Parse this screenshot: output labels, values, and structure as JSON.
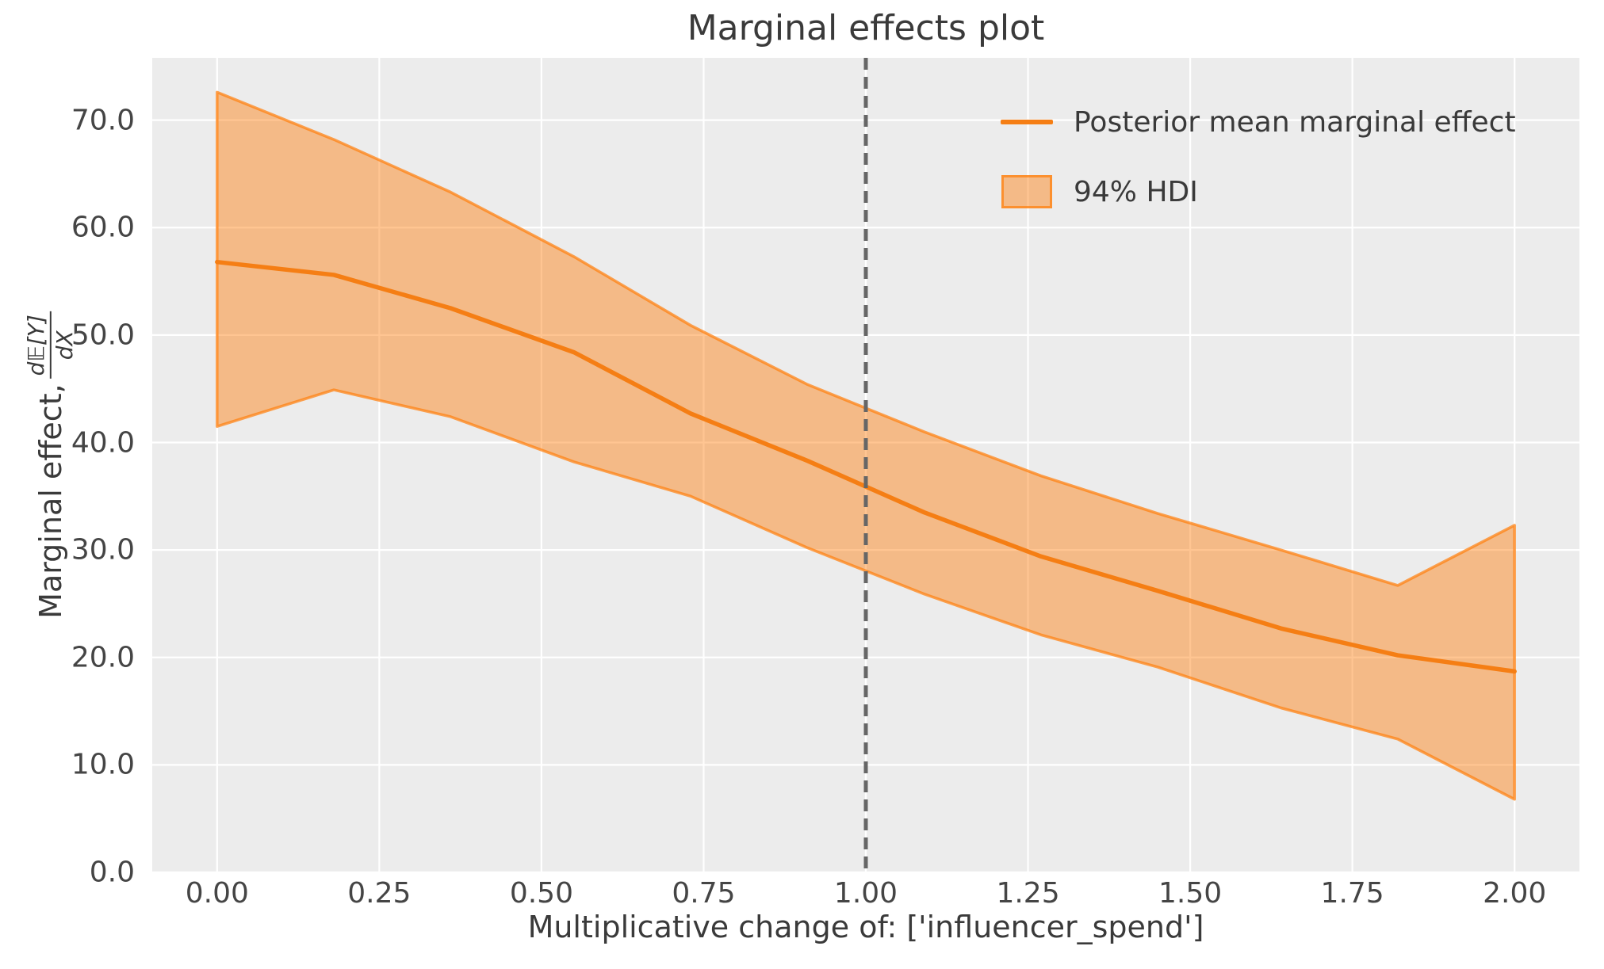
{
  "title": "Marginal effects plot",
  "legend": {
    "line_label": "Posterior mean marginal effect",
    "band_label": "94% HDI"
  },
  "x_axis": {
    "label": "Multiplicative change of: ['influencer_spend']",
    "tick_labels": [
      "0.00",
      "0.25",
      "0.50",
      "0.75",
      "1.00",
      "1.25",
      "1.50",
      "1.75",
      "2.00"
    ],
    "tick_values": [
      0,
      0.25,
      0.5,
      0.75,
      1.0,
      1.25,
      1.5,
      1.75,
      2.0
    ]
  },
  "y_axis": {
    "label_prefix": "Marginal effect, ",
    "fraction_numerator": "d𝔼[Y]",
    "fraction_denominator": "dX",
    "tick_labels": [
      "0.0",
      "10.0",
      "20.0",
      "30.0",
      "40.0",
      "50.0",
      "60.0",
      "70.0"
    ],
    "tick_values": [
      0,
      10,
      20,
      30,
      40,
      50,
      60,
      70
    ]
  },
  "reference_line": {
    "x": 1.0,
    "style": "dashed",
    "color": "#666666"
  },
  "colors": {
    "plot_background": "#ececec",
    "gridline": "#ffffff",
    "mean_line": "#f57e14",
    "band_fill": "rgba(255,127,14,0.45)",
    "band_edge": "rgba(255,127,14,0.72)",
    "text": "#3a3a3a"
  },
  "chart_data": {
    "type": "line",
    "title": "Marginal effects plot",
    "xlabel": "Multiplicative change of: ['influencer_spend']",
    "ylabel": "Marginal effect, d𝔼[Y]/dX",
    "xlim": [
      -0.1,
      2.1
    ],
    "ylim": [
      0,
      75.8
    ],
    "grid": true,
    "legend_position": "upper right",
    "x": [
      0.0,
      0.18,
      0.36,
      0.55,
      0.73,
      0.91,
      1.09,
      1.27,
      1.45,
      1.64,
      1.82,
      2.0
    ],
    "series": [
      {
        "name": "Posterior mean marginal effect",
        "values": [
          56.8,
          55.6,
          52.5,
          48.4,
          42.7,
          38.3,
          33.5,
          29.4,
          26.2,
          22.7,
          20.2,
          18.7
        ]
      },
      {
        "name": "94% HDI upper",
        "values": [
          72.6,
          68.2,
          63.3,
          57.3,
          50.9,
          45.4,
          41.0,
          36.9,
          33.4,
          30.0,
          26.7,
          32.3
        ]
      },
      {
        "name": "94% HDI lower",
        "values": [
          41.5,
          44.9,
          42.4,
          38.2,
          35.0,
          30.2,
          25.9,
          22.1,
          19.1,
          15.3,
          12.4,
          6.8
        ]
      }
    ]
  }
}
